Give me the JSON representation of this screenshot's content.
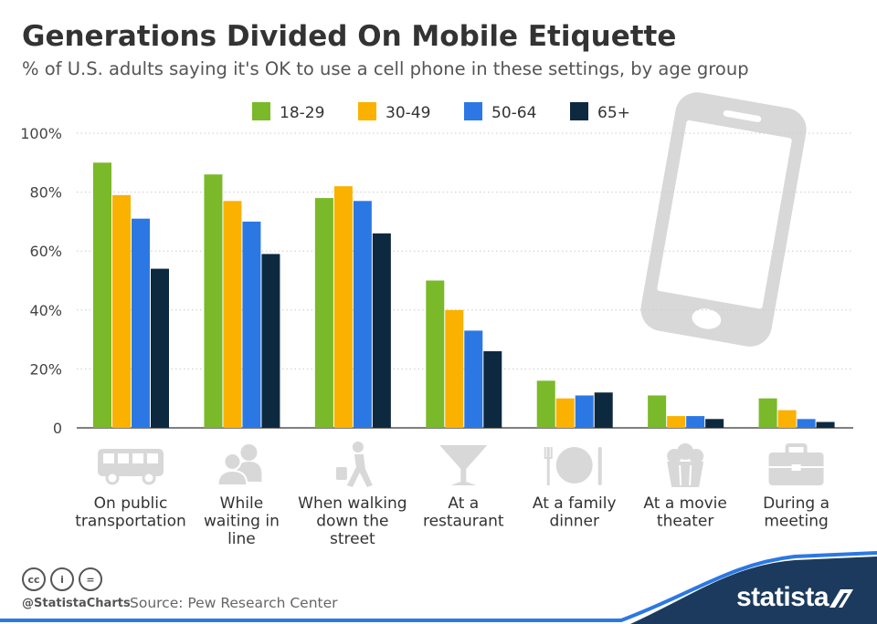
{
  "title": "Generations Divided On Mobile Etiquette",
  "subtitle": "% of U.S. adults saying it's OK to use a cell phone in these settings, by age group",
  "colors": {
    "accent_blue": "#2b78e4",
    "text": "#333333",
    "grid": "#cccccc",
    "icon_gray": "#d8d8d8"
  },
  "chart_data": {
    "type": "bar",
    "categories": [
      "On public transportation",
      "While waiting in line",
      "When walking down the street",
      "At a restaurant",
      "At a family dinner",
      "At a movie theater",
      "During a meeting"
    ],
    "category_lines": [
      [
        "On public",
        "transportation"
      ],
      [
        "While",
        "waiting in",
        "line"
      ],
      [
        "When walking",
        "down the",
        "street"
      ],
      [
        "At a",
        "restaurant"
      ],
      [
        "At a family",
        "dinner"
      ],
      [
        "At a movie",
        "theater"
      ],
      [
        "During a",
        "meeting"
      ]
    ],
    "category_icons": [
      "bus-icon",
      "people-icon",
      "walking-person-icon",
      "cocktail-glass-icon",
      "dinner-plate-icon",
      "popcorn-icon",
      "briefcase-icon"
    ],
    "series": [
      {
        "name": "18-29",
        "color": "#7ab929",
        "values": [
          90,
          86,
          78,
          50,
          16,
          11,
          10
        ]
      },
      {
        "name": "30-49",
        "color": "#fbb100",
        "values": [
          79,
          77,
          82,
          40,
          10,
          4,
          6
        ]
      },
      {
        "name": "50-64",
        "color": "#2b78e4",
        "values": [
          71,
          70,
          77,
          33,
          11,
          4,
          3
        ]
      },
      {
        "name": "65+",
        "color": "#0d2940",
        "values": [
          54,
          59,
          66,
          26,
          12,
          3,
          2
        ]
      }
    ],
    "ylim": [
      0,
      100
    ],
    "yticks": [
      0,
      20,
      40,
      60,
      80,
      100
    ],
    "ytick_labels": [
      "0",
      "20%",
      "40%",
      "60%",
      "80%",
      "100%"
    ],
    "grid": true,
    "legend_position": "top-center"
  },
  "footer": {
    "cc_icons": [
      "cc-icon",
      "by-icon",
      "nd-icon"
    ],
    "cc_labels": [
      "cc",
      "i",
      "="
    ],
    "handle": "@StatistaCharts",
    "source": "Source: Pew Research Center",
    "brand": "statista"
  }
}
